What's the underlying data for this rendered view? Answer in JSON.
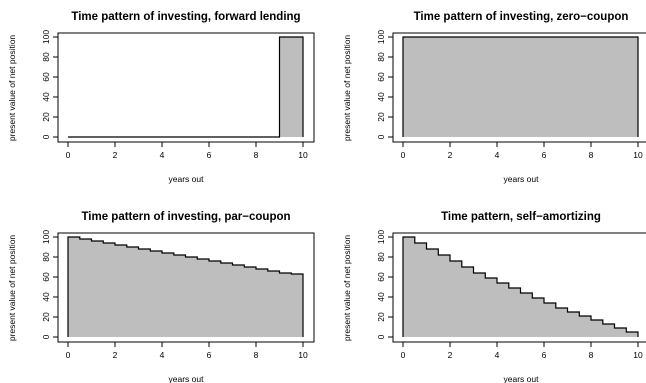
{
  "chart_data": [
    {
      "type": "area",
      "title": "Time pattern of investing, forward lending",
      "xlabel": "years out",
      "ylabel": "present value of net position",
      "xlim": [
        0,
        10
      ],
      "ylim": [
        0,
        100
      ],
      "xticks": [
        "0",
        "2",
        "4",
        "6",
        "8",
        "10"
      ],
      "yticks": [
        "0",
        "20",
        "40",
        "60",
        "80",
        "100"
      ],
      "step": true,
      "x": [
        0,
        9,
        9,
        10
      ],
      "y": [
        0,
        0,
        100,
        100
      ],
      "fill": "#bebebe"
    },
    {
      "type": "area",
      "title": "Time pattern of investing, zero−coupon",
      "xlabel": "years out",
      "ylabel": "present value of net position",
      "xlim": [
        0,
        10
      ],
      "ylim": [
        0,
        100
      ],
      "xticks": [
        "0",
        "2",
        "4",
        "6",
        "8",
        "10"
      ],
      "yticks": [
        "0",
        "20",
        "40",
        "60",
        "80",
        "100"
      ],
      "step": true,
      "x": [
        0,
        10
      ],
      "y": [
        100,
        100
      ],
      "fill": "#bebebe"
    },
    {
      "type": "area",
      "title": "Time pattern of investing, par−coupon",
      "xlabel": "years out",
      "ylabel": "present value of net position",
      "xlim": [
        0,
        10
      ],
      "ylim": [
        0,
        100
      ],
      "xticks": [
        "0",
        "2",
        "4",
        "6",
        "8",
        "10"
      ],
      "yticks": [
        "0",
        "20",
        "40",
        "60",
        "80",
        "100"
      ],
      "step": true,
      "x": [
        0,
        0.5,
        1,
        1.5,
        2,
        2.5,
        3,
        3.5,
        4,
        4.5,
        5,
        5.5,
        6,
        6.5,
        7,
        7.5,
        8,
        8.5,
        9,
        9.5,
        10
      ],
      "y": [
        100,
        98,
        96,
        94,
        92,
        90,
        88,
        86,
        84,
        82,
        80,
        78,
        76,
        74,
        72,
        70,
        68,
        66,
        64,
        63,
        62
      ],
      "fill": "#bebebe"
    },
    {
      "type": "area",
      "title": "Time pattern, self−amortizing",
      "xlabel": "years out",
      "ylabel": "present value of net position",
      "xlim": [
        0,
        10
      ],
      "ylim": [
        0,
        100
      ],
      "xticks": [
        "0",
        "2",
        "4",
        "6",
        "8",
        "10"
      ],
      "yticks": [
        "0",
        "20",
        "40",
        "60",
        "80",
        "100"
      ],
      "step": true,
      "x": [
        0,
        0.5,
        1,
        1.5,
        2,
        2.5,
        3,
        3.5,
        4,
        4.5,
        5,
        5.5,
        6,
        6.5,
        7,
        7.5,
        8,
        8.5,
        9,
        9.5,
        10
      ],
      "y": [
        100,
        94,
        88,
        82,
        76,
        70,
        64,
        59,
        54,
        49,
        44,
        39,
        34,
        29,
        25,
        21,
        17,
        13,
        9,
        5,
        2
      ],
      "fill": "#bebebe"
    }
  ]
}
